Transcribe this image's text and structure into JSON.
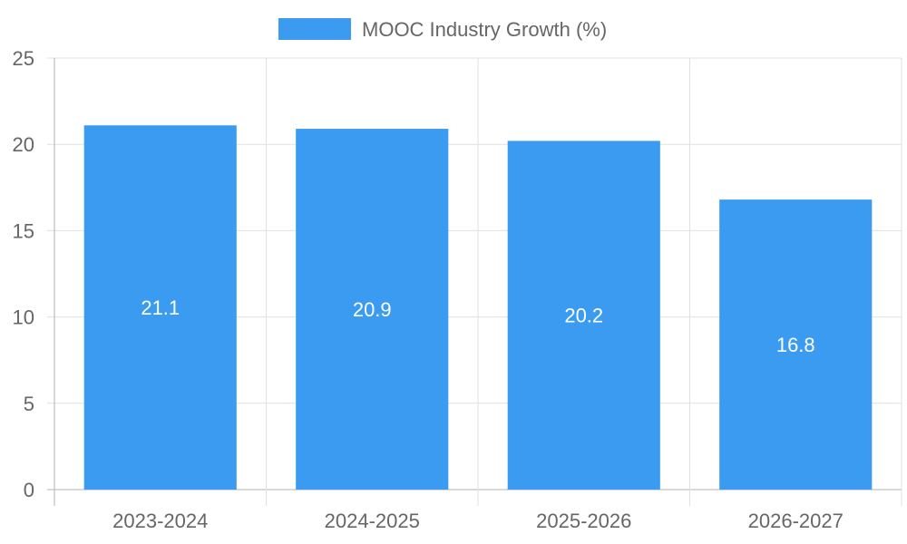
{
  "chart_data": {
    "type": "bar",
    "categories": [
      "2023-2024",
      "2024-2025",
      "2025-2026",
      "2026-2027"
    ],
    "series": [
      {
        "name": "MOOC Industry Growth (%)",
        "values": [
          21.1,
          20.9,
          20.2,
          16.8
        ],
        "color": "#3a9bf0"
      }
    ],
    "ylim": [
      0,
      25
    ],
    "yticks": [
      0,
      5,
      10,
      15,
      20,
      25
    ],
    "grid": true,
    "legend": "top-center",
    "data_labels": true,
    "colors": {
      "grid": "#e0e0e0",
      "axis": "#b3b3b3",
      "text": "#666666",
      "label": "#ffffff"
    }
  }
}
